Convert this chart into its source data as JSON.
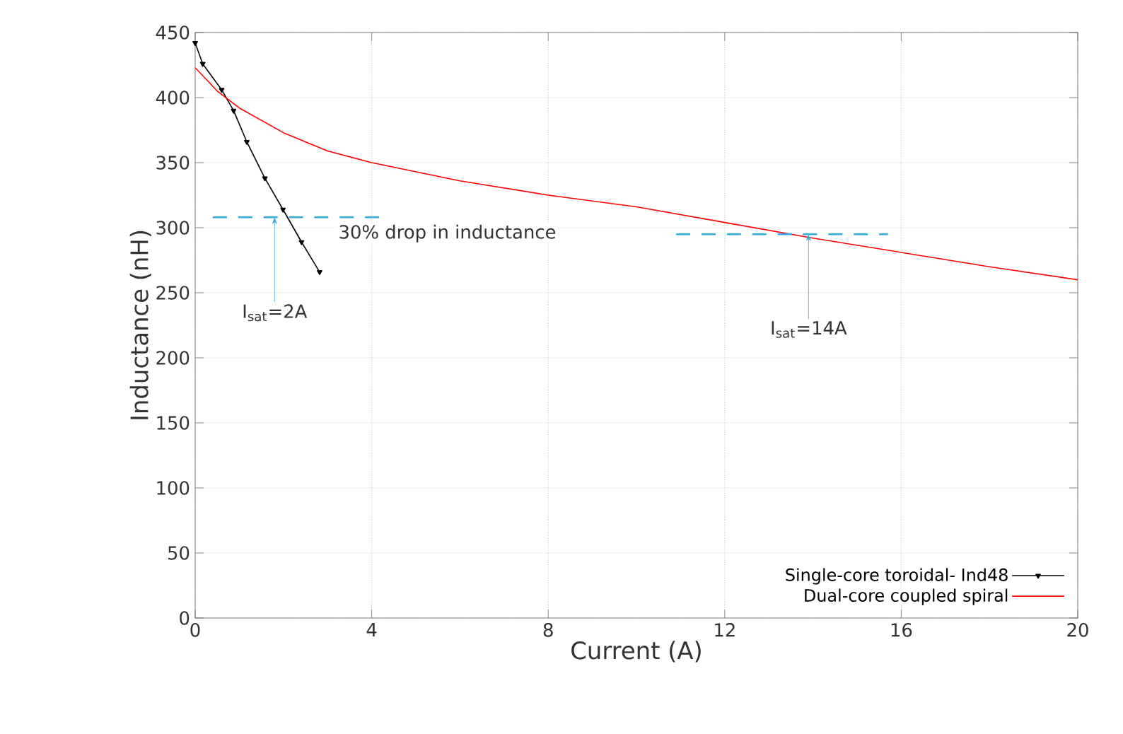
{
  "chart_data": {
    "type": "line",
    "xlabel": "Current (A)",
    "ylabel": "Inductance (nH)",
    "xlim": [
      0,
      20
    ],
    "ylim": [
      0,
      450
    ],
    "xticks": [
      0,
      4,
      8,
      12,
      16,
      20
    ],
    "yticks": [
      0,
      50,
      100,
      150,
      200,
      250,
      300,
      350,
      400,
      450
    ],
    "grid": true,
    "legend": "bottom right",
    "series": [
      {
        "name": "Single-core  toroidal- Ind48",
        "color": "#000000",
        "marker": "triangle",
        "x": [
          0,
          0.17,
          0.6,
          0.87,
          1.17,
          1.58,
          1.99,
          2.41,
          2.82
        ],
        "values": [
          442,
          426,
          406,
          390,
          366,
          338,
          314,
          289,
          266
        ]
      },
      {
        "name": "Dual-core coupled spiral",
        "color": "#ff0000",
        "marker": "none",
        "x": [
          0,
          0.5,
          1,
          2,
          3,
          4,
          6,
          8,
          10,
          12,
          14,
          16,
          18,
          20
        ],
        "values": [
          423,
          405,
          392,
          373,
          359,
          350,
          336,
          325,
          316,
          304,
          292,
          281,
          270,
          260
        ]
      },
      {
        "color": "#33aadd",
        "line_style": "dashed",
        "marker": "none",
        "x": [
          0.4,
          4.2
        ],
        "values": [
          308,
          308
        ]
      },
      {
        "color": "#33aadd",
        "line_style": "dashed",
        "marker": "none",
        "x": [
          10.9,
          15.7
        ],
        "values": [
          295,
          295
        ]
      }
    ],
    "annotations": [
      "30% drop in inductance",
      {
        "text": "I$_{sat}$=2A",
        "x": 1.8,
        "y": 308
      },
      {
        "text": "I$_{sat}$=14A",
        "x": 13.9,
        "y": 295
      }
    ]
  }
}
